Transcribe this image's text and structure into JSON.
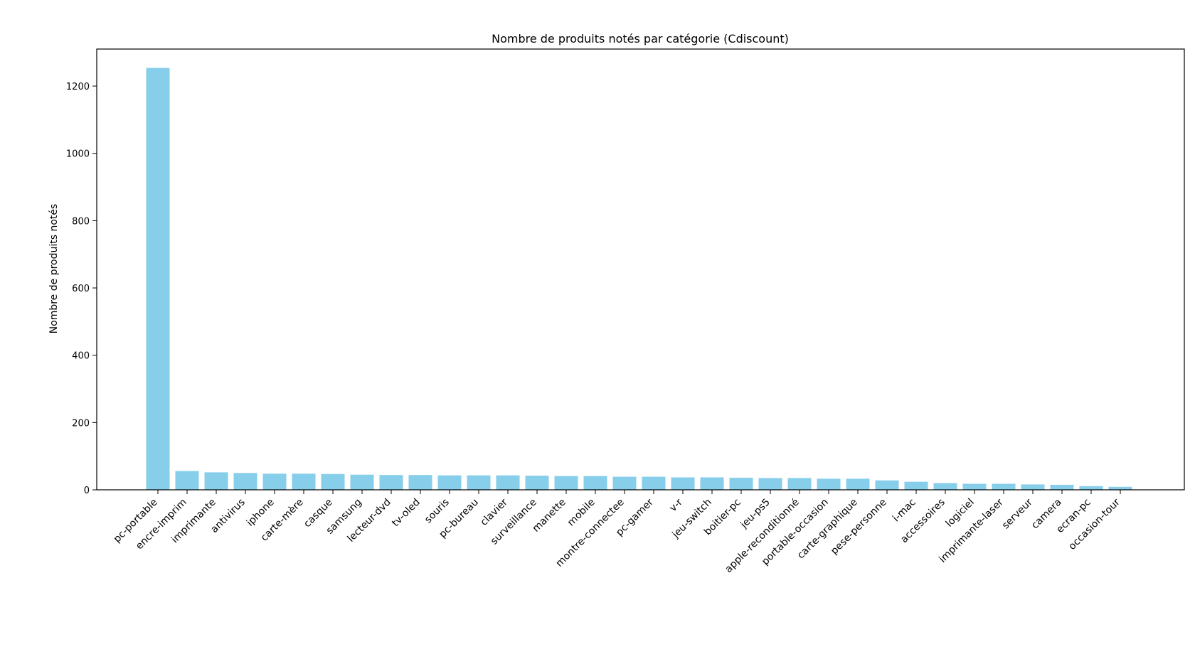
{
  "chart_data": {
    "type": "bar",
    "title": "Nombre de produits notés par catégorie (Cdiscount)",
    "xlabel": "",
    "ylabel": "Nombre de produits notés",
    "ylim": [
      0,
      1310
    ],
    "yticks": [
      0,
      200,
      400,
      600,
      800,
      1000,
      1200
    ],
    "bar_color": "#87CEEB",
    "grid": false,
    "categories": [
      "pc-portable",
      "encre-imprim",
      "imprimante",
      "antivirus",
      "iphone",
      "carte-mère",
      "casque",
      "samsung",
      "lecteur-dvd",
      "tv-oled",
      "souris",
      "pc-bureau",
      "clavier",
      "surveillance",
      "manette",
      "mobile",
      "montre-connectee",
      "pc-gamer",
      "v-r",
      "jeu-switch",
      "boitier-pc",
      "jeu-ps5",
      "apple-reconditionné",
      "portable-occasion",
      "carte-graphique",
      "pese-personne",
      "i-mac",
      "accessoires",
      "logiciel",
      "imprimante-laser",
      "serveur",
      "camera",
      "ecran-pc",
      "occasion-tour"
    ],
    "values": [
      1254,
      56,
      52,
      50,
      48,
      48,
      47,
      45,
      44,
      44,
      43,
      43,
      43,
      42,
      41,
      41,
      39,
      39,
      37,
      37,
      36,
      35,
      35,
      33,
      33,
      28,
      24,
      20,
      18,
      18,
      16,
      15,
      11,
      9
    ]
  }
}
